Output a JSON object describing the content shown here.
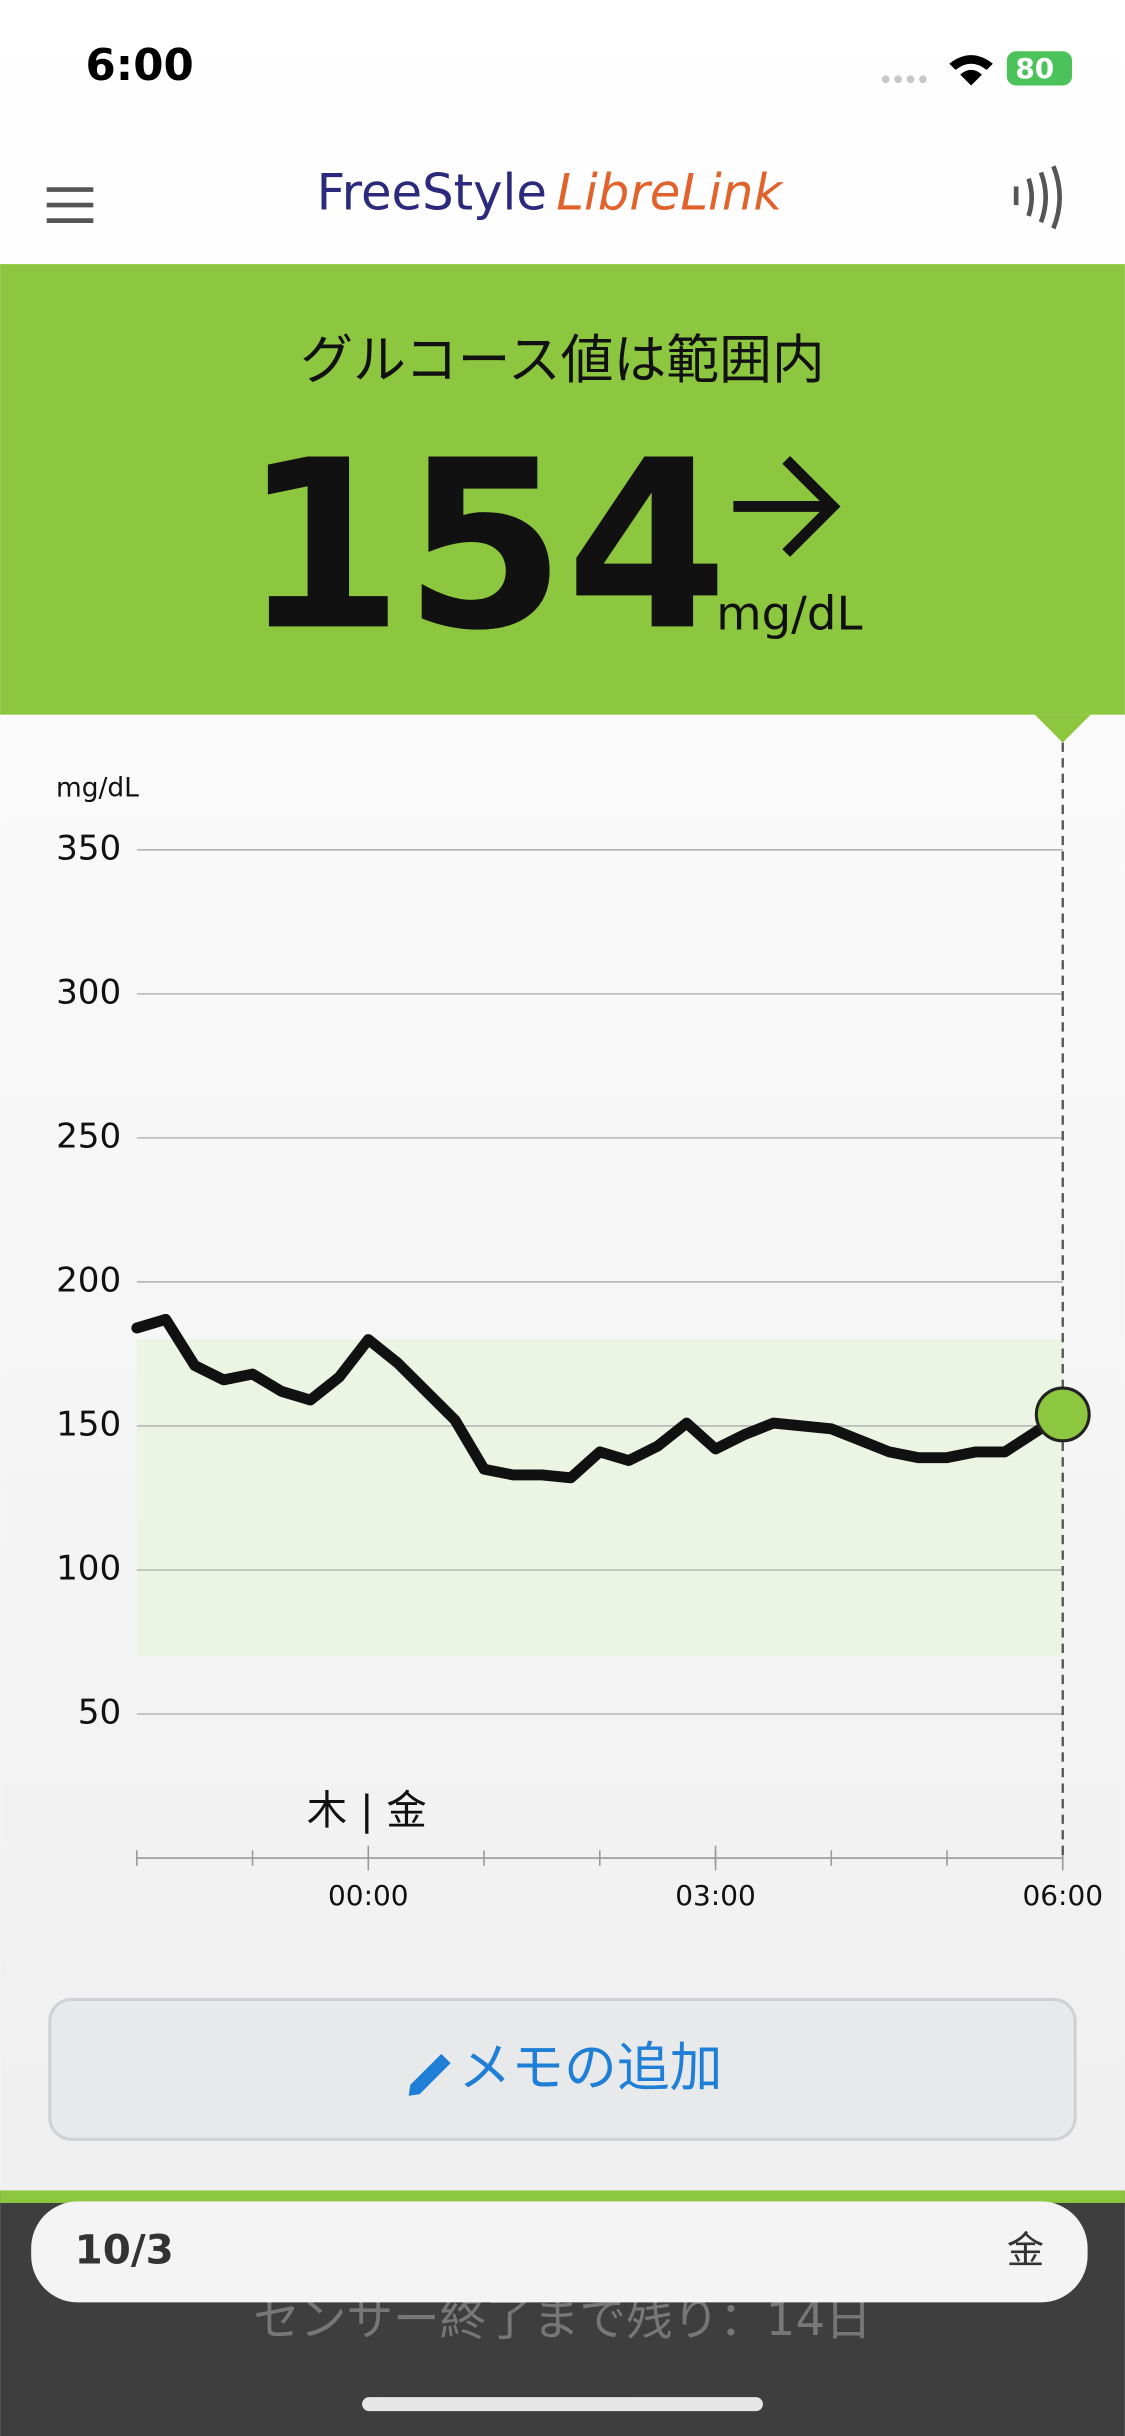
{
  "status_bar": {
    "time": "6:00",
    "battery": "80"
  },
  "header": {
    "brand_1": "FreeStyle",
    "brand_2": "LibreLink"
  },
  "banner": {
    "status": "グルコース値は範囲内",
    "value": "154",
    "unit": "mg/dL"
  },
  "chart_data": {
    "type": "line",
    "y_label": "mg/dL",
    "annotation": "木 | 金",
    "x": [
      -2,
      -1.75,
      -1.5,
      -1.25,
      -1,
      -0.75,
      -0.5,
      -0.25,
      0,
      0.25,
      0.75,
      1,
      1.25,
      1.5,
      1.75,
      2,
      2.25,
      2.5,
      2.75,
      3,
      3.25,
      3.5,
      3.75,
      4,
      4.25,
      4.5,
      4.75,
      5,
      5.25,
      5.5,
      6
    ],
    "series": [
      {
        "name": "グルコース",
        "color": "#111111",
        "values": [
          184,
          187,
          171,
          166,
          168,
          162,
          159,
          167,
          180,
          172,
          152,
          135,
          133,
          133,
          132,
          141,
          138,
          143,
          151,
          142,
          147,
          151,
          150,
          149,
          145,
          141,
          139,
          139,
          141,
          141,
          154
        ]
      }
    ],
    "target_range": [
      70,
      180
    ],
    "target_color": "#ecf5e3",
    "marker_color": "#8dc63f",
    "xlim": [
      -2,
      6
    ],
    "xticks": [
      {
        "value": 0,
        "label": "00:00"
      },
      {
        "value": 3,
        "label": "03:00"
      },
      {
        "value": 6,
        "label": "06:00"
      }
    ],
    "ylim": [
      0,
      350
    ],
    "yticks": [
      50,
      100,
      150,
      200,
      250,
      300,
      350
    ],
    "grid": true
  },
  "memo_button": "メモの追加",
  "footer": {
    "date": "10/3",
    "weekday": "金",
    "sensor": "センサー終了まで残り：14日"
  }
}
